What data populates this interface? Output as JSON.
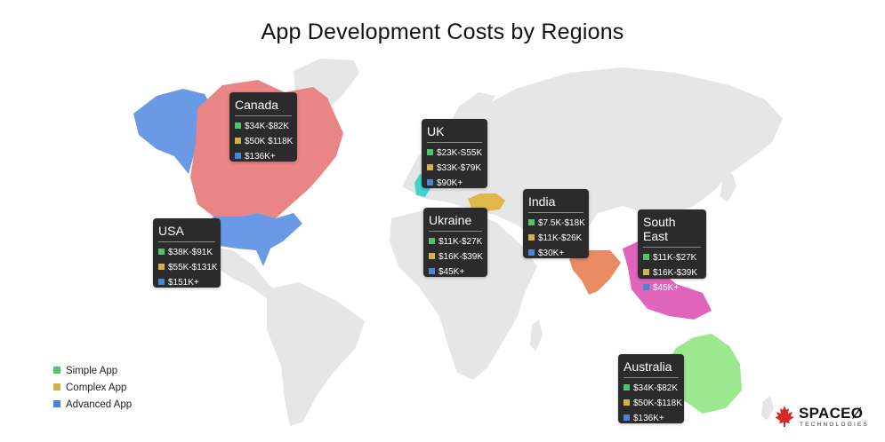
{
  "title": "App Development Costs by Regions",
  "colors": {
    "simple": "#4fc46b",
    "complex": "#d4b04a",
    "advanced": "#4a84d6",
    "land": "#e6e6e6",
    "canada": "#e98585",
    "usa": "#6a9ae6",
    "alaska": "#6a9ae6",
    "uk": "#3fd4cf",
    "ukraine": "#e0b84a",
    "india": "#e88a62",
    "southeast": "#e063bc",
    "australia": "#9be88f",
    "card": "#2b2b2b"
  },
  "regions": [
    {
      "name": "Canada",
      "rows": [
        "$34K-$82K",
        "$50K $118K",
        "$136K+"
      ]
    },
    {
      "name": "UK",
      "rows": [
        "$23K-S55K",
        "$33K-$79K",
        "$90K+"
      ]
    },
    {
      "name": "USA",
      "rows": [
        "$38K-$91K",
        "$55K-$131K",
        "$151K+"
      ]
    },
    {
      "name": "Ukraine",
      "rows": [
        "$11K-$27K",
        "$16K-$39K",
        "$45K+"
      ]
    },
    {
      "name": "India",
      "rows": [
        "$7.5K-$18K",
        "$11K-$26K",
        "$30K+"
      ]
    },
    {
      "name": "South East",
      "rows": [
        "$11K-$27K",
        "$16K-$39K",
        "$45K+"
      ]
    },
    {
      "name": "Australia",
      "rows": [
        "$34K-$82K",
        "$50K-$118K",
        "$136K+"
      ]
    }
  ],
  "legend": [
    "Simple App",
    "Complex App",
    "Advanced App"
  ],
  "logo": {
    "name": "SPACEØ",
    "tagline": "TECHNOLOGIES"
  }
}
